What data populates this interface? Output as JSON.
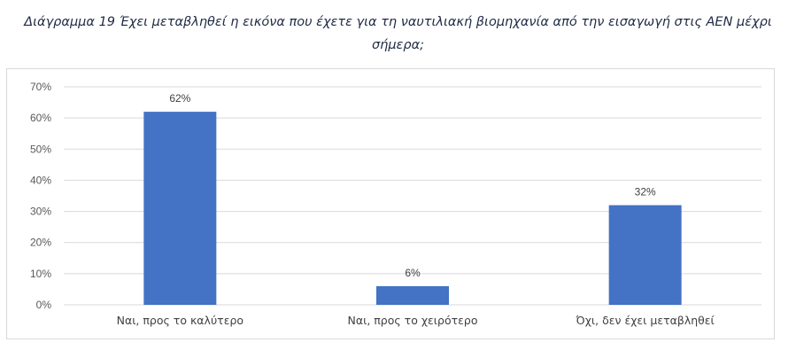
{
  "caption": {
    "line1": "Διάγραμμα 19 Έχει μεταβληθεί η εικόνα που έχετε για τη ναυτιλιακή βιομηχανία από την εισαγωγή στις ΑΕΝ μέχρι",
    "line2": "σήμερα;"
  },
  "colors": {
    "bar": "#4472c4",
    "grid": "#d9d9d9"
  },
  "chart_data": {
    "type": "bar",
    "categories": [
      "Ναι, προς το καλύτερο",
      "Ναι, προς το χειρότερο",
      "Όχι, δεν έχει μεταβληθεί"
    ],
    "values": [
      62,
      6,
      32
    ],
    "data_labels": [
      "62%",
      "6%",
      "32%"
    ],
    "title": "",
    "xlabel": "",
    "ylabel": "",
    "ylim": [
      0,
      70
    ],
    "yticks": [
      "0%",
      "10%",
      "20%",
      "30%",
      "40%",
      "50%",
      "60%",
      "70%"
    ],
    "grid": true,
    "legend": "none"
  }
}
